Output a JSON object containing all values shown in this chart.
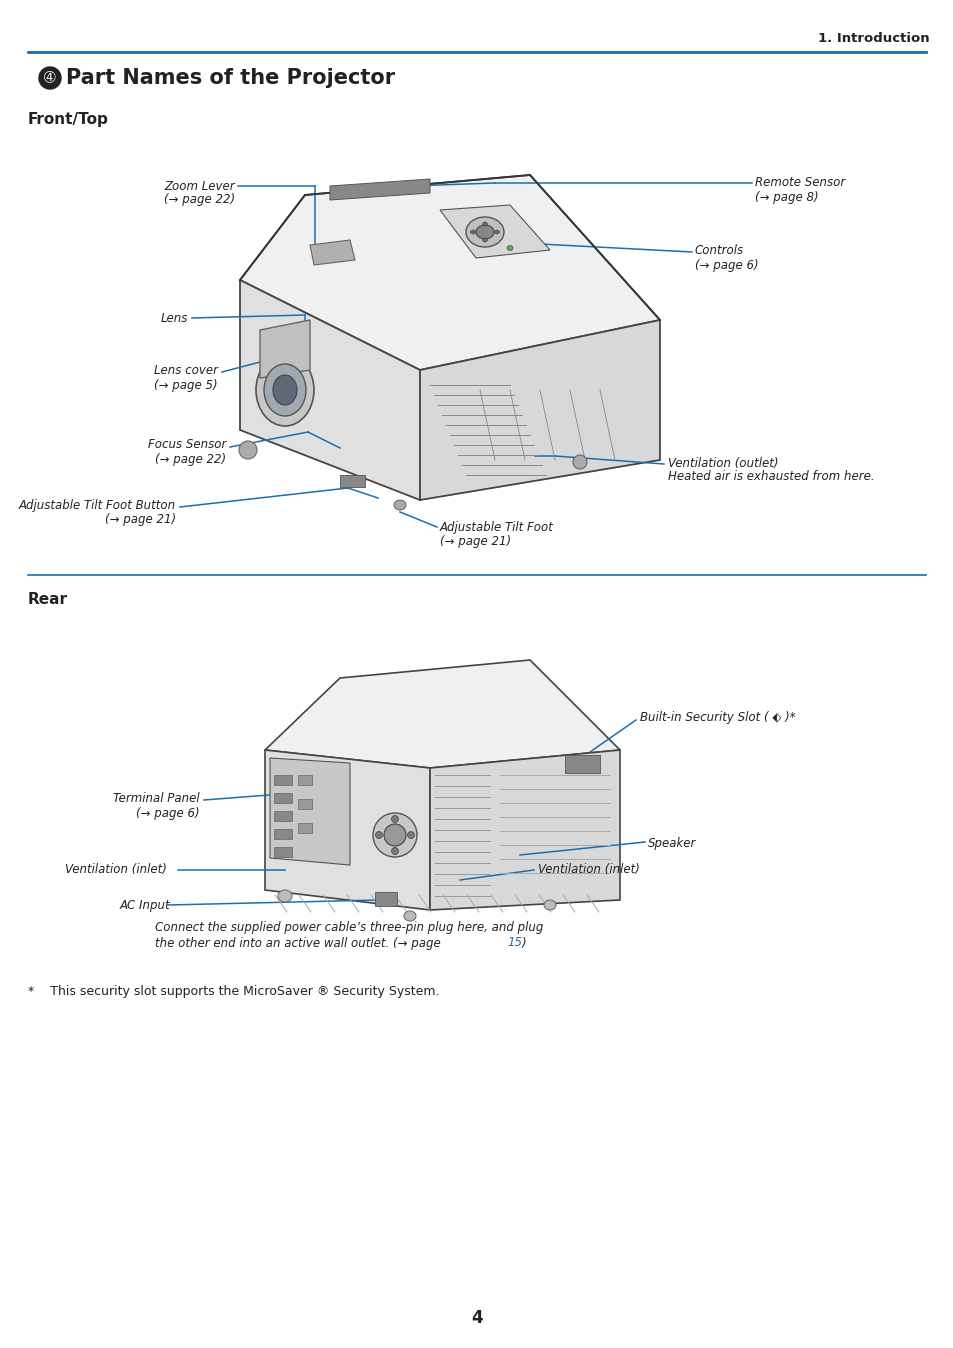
{
  "page_title": "1. Introduction",
  "section_number": "➃",
  "section_text": "Part Names of the Projector",
  "subsection1": "Front/Top",
  "subsection2": "Rear",
  "blue": "#1c6fad",
  "dark": "#222222",
  "gray": "#555555",
  "light_gray": "#e8e8e8",
  "page_number": "4",
  "bg": "#ffffff",
  "footnote": "*    This security slot supports the MicroSaver ® Security System.",
  "label_fontsize": 8.5,
  "page_link_color": "#1c6fad"
}
